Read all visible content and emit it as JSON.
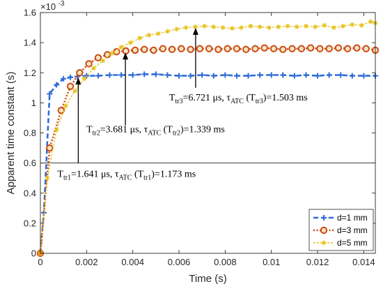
{
  "chart_data": {
    "type": "line",
    "xlabel": "Time (s)",
    "ylabel": "Apparent time constant (s)",
    "y_exponent_label": "×10",
    "y_exponent_power": "-3",
    "xlim": [
      0,
      0.0145
    ],
    "ylim": [
      0,
      1.6
    ],
    "xticks": [
      0,
      0.002,
      0.004,
      0.006,
      0.008,
      0.01,
      0.012,
      0.014
    ],
    "xtick_labels": [
      "0",
      "0.002",
      "0.004",
      "0.006",
      "0.008",
      "0.01",
      "0.012",
      "0.014"
    ],
    "yticks": [
      0,
      0.2,
      0.4,
      0.6,
      0.8,
      1,
      1.2,
      1.4,
      1.6
    ],
    "ytick_labels": [
      "0",
      "0.2",
      "0.4",
      "0.6",
      "0.8",
      "1",
      "1.2",
      "1.4",
      "1.6"
    ],
    "grid": false,
    "reference_line_y": 0.6,
    "legend_position": "bottom-right",
    "series": [
      {
        "name": "d=1 mm",
        "color": "#2e6bd6",
        "marker": "plus",
        "x": [
          0,
          0.00015,
          0.0004,
          0.0007,
          0.001,
          0.0013,
          0.0016,
          0.002,
          0.0025,
          0.003,
          0.0035,
          0.004,
          0.0045,
          0.005,
          0.0055,
          0.006,
          0.0065,
          0.007,
          0.0075,
          0.008,
          0.0085,
          0.009,
          0.0095,
          0.01,
          0.0105,
          0.011,
          0.0115,
          0.012,
          0.0125,
          0.013,
          0.0135,
          0.014,
          0.0145
        ],
        "y": [
          0,
          0.27,
          1.06,
          1.12,
          1.16,
          1.17,
          1.175,
          1.18,
          1.18,
          1.185,
          1.185,
          1.185,
          1.19,
          1.19,
          1.185,
          1.18,
          1.18,
          1.185,
          1.18,
          1.185,
          1.18,
          1.18,
          1.185,
          1.185,
          1.185,
          1.18,
          1.185,
          1.18,
          1.185,
          1.185,
          1.18,
          1.18,
          1.18
        ]
      },
      {
        "name": "d=3 mm",
        "color": "#cc4b10",
        "marker": "circle",
        "x": [
          0,
          0.0004,
          0.0009,
          0.0013,
          0.0017,
          0.0021,
          0.0025,
          0.0029,
          0.0033,
          0.0037,
          0.0041,
          0.0045,
          0.0049,
          0.0053,
          0.0057,
          0.0061,
          0.0065,
          0.0069,
          0.0073,
          0.0077,
          0.0081,
          0.0085,
          0.0089,
          0.0093,
          0.0097,
          0.0101,
          0.0105,
          0.0109,
          0.0113,
          0.0117,
          0.0121,
          0.0125,
          0.0129,
          0.0133,
          0.0137,
          0.0141,
          0.0145
        ],
        "y": [
          0,
          0.7,
          0.95,
          1.11,
          1.2,
          1.26,
          1.3,
          1.32,
          1.34,
          1.345,
          1.35,
          1.355,
          1.35,
          1.36,
          1.355,
          1.36,
          1.355,
          1.36,
          1.36,
          1.355,
          1.36,
          1.36,
          1.355,
          1.36,
          1.365,
          1.36,
          1.355,
          1.36,
          1.36,
          1.365,
          1.36,
          1.36,
          1.365,
          1.36,
          1.365,
          1.36,
          1.35
        ]
      },
      {
        "name": "d=5 mm",
        "color": "#e6c21a",
        "marker": "star",
        "x": [
          0,
          0.0003,
          0.0007,
          0.0011,
          0.0015,
          0.0019,
          0.0023,
          0.0027,
          0.0031,
          0.0035,
          0.0039,
          0.0043,
          0.0047,
          0.0051,
          0.0055,
          0.0059,
          0.0063,
          0.0067,
          0.0071,
          0.0075,
          0.0079,
          0.0083,
          0.0087,
          0.0091,
          0.0095,
          0.0099,
          0.0103,
          0.0107,
          0.0111,
          0.0115,
          0.0119,
          0.0123,
          0.0127,
          0.0131,
          0.0135,
          0.0139,
          0.0143,
          0.0145
        ],
        "y": [
          0,
          0.5,
          0.82,
          0.98,
          1.08,
          1.16,
          1.23,
          1.28,
          1.33,
          1.37,
          1.4,
          1.43,
          1.45,
          1.46,
          1.475,
          1.49,
          1.5,
          1.505,
          1.51,
          1.505,
          1.5,
          1.495,
          1.5,
          1.51,
          1.505,
          1.5,
          1.505,
          1.51,
          1.505,
          1.51,
          1.505,
          1.515,
          1.5,
          1.51,
          1.52,
          1.515,
          1.54,
          1.53
        ]
      }
    ],
    "annotations": [
      {
        "main": "T",
        "sub1": "tr1",
        "text1": "=1.641 μs, τ",
        "sub2": "ATC",
        "text2": " (T",
        "sub3": "tr1",
        "text3": ")=1.173 ms",
        "point_x": 0.00164,
        "point_y": 1.173,
        "label_x": 0.00164,
        "label_y": 0.6
      },
      {
        "main": "T",
        "sub1": "tr2",
        "text1": "=3.681 μs, τ",
        "sub2": "ATC",
        "text2": " (T",
        "sub3": "tr2",
        "text3": ")=1.339 ms",
        "point_x": 0.00368,
        "point_y": 1.339,
        "label_x": 0.00368,
        "label_y": 0.85
      },
      {
        "main": "T",
        "sub1": "tr3",
        "text1": "=6.721 μs, τ",
        "sub2": "ATC",
        "text2": " (T",
        "sub3": "tr3",
        "text3": ")=1.503 ms",
        "point_x": 0.00672,
        "point_y": 1.503,
        "label_x": 0.00672,
        "label_y": 1.1
      }
    ]
  }
}
